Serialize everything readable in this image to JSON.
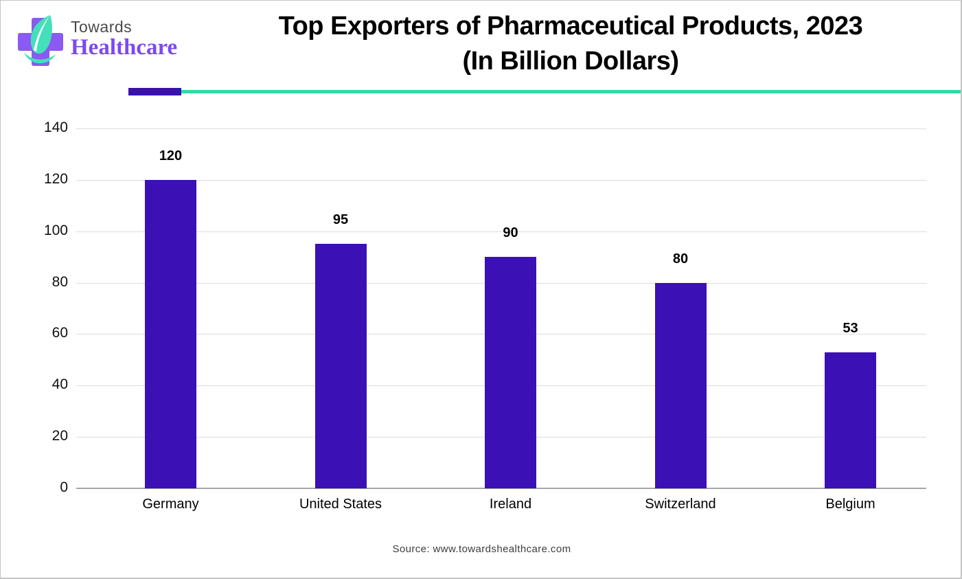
{
  "header": {
    "logo": {
      "line1": "Towards",
      "line2": "Healthcare",
      "cross_color": "#8a5af2",
      "leaf_color": "#43e0bb",
      "towards_color": "#4a4a4a",
      "healthcare_color": "#7c4af0"
    },
    "title_line1": "Top Exporters of Pharmaceutical Products, 2023",
    "title_line2": "(In Billion Dollars)",
    "divider": {
      "purple_color": "#3a11ab",
      "teal_color": "#2edba8"
    }
  },
  "chart_data": {
    "type": "bar",
    "title": "Top Exporters of Pharmaceutical Products, 2023 (In Billion Dollars)",
    "categories": [
      "Germany",
      "United States",
      "Ireland",
      "Switzerland",
      "Belgium"
    ],
    "values": [
      120,
      95,
      90,
      80,
      53
    ],
    "value_labels": [
      "120",
      "95",
      "90",
      "80",
      "53"
    ],
    "bar_color": "#3b10b5",
    "ylim": [
      0,
      140
    ],
    "yticks": [
      0,
      20,
      40,
      60,
      80,
      100,
      120,
      140
    ],
    "grid": true,
    "gridline_color": "#dcdcdc",
    "axis_line_color": "#a6a6a6",
    "tick_label_color": "#111111",
    "xlabel": "",
    "ylabel": "",
    "legend": "none"
  },
  "footer": {
    "source_text": "Source: www.towardshealthcare.com"
  }
}
